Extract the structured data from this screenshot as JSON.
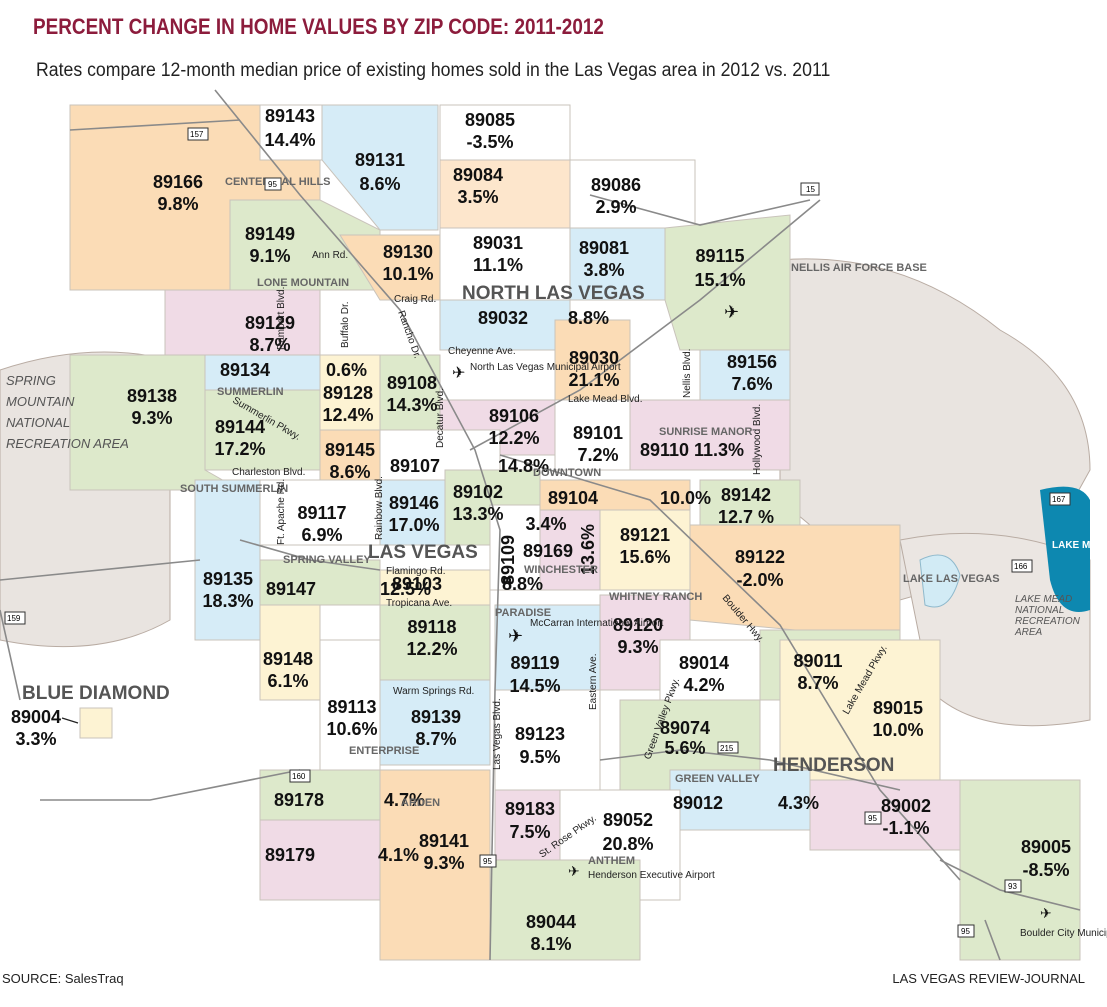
{
  "title": "PERCENT CHANGE IN HOME VALUES BY ZIP CODE: 2011-2012",
  "subtitle": "Rates compare 12-month median price of existing homes sold in the Las Vegas area in 2012 vs. 2011",
  "source": "SOURCE: SalesTraq",
  "credit": "LAS VEGAS REVIEW-JOURNAL",
  "colors": {
    "orange": "#fbdcb6",
    "blue": "#d6ecf7",
    "pink": "#f0dbe6",
    "green": "#dde9cb",
    "cream": "#fdf3d3",
    "white": "#ffffff",
    "land": "#eae5e1",
    "lake": "#0d88b0",
    "title": "#8c1c3c"
  },
  "zips": [
    {
      "zip": "89143",
      "change": "14.4%"
    },
    {
      "zip": "89085",
      "change": "-3.5%"
    },
    {
      "zip": "89131",
      "change": "8.6%"
    },
    {
      "zip": "89166",
      "change": "9.8%"
    },
    {
      "zip": "89084",
      "change": "3.5%"
    },
    {
      "zip": "89086",
      "change": "2.9%"
    },
    {
      "zip": "89149",
      "change": "9.1%"
    },
    {
      "zip": "89130",
      "change": "10.1%"
    },
    {
      "zip": "89031",
      "change": "11.1%"
    },
    {
      "zip": "89081",
      "change": "3.8%"
    },
    {
      "zip": "89115",
      "change": "15.1%"
    },
    {
      "zip": "89129",
      "change": "8.7%"
    },
    {
      "zip": "89032",
      "change": "8.8%"
    },
    {
      "zip": "89134",
      "change": "0.6%"
    },
    {
      "zip": "89138",
      "change": "9.3%"
    },
    {
      "zip": "89128",
      "change": "12.4%"
    },
    {
      "zip": "89108",
      "change": "14.3%"
    },
    {
      "zip": "89030",
      "change": "21.1%"
    },
    {
      "zip": "89156",
      "change": "7.6%"
    },
    {
      "zip": "89144",
      "change": "17.2%"
    },
    {
      "zip": "89106",
      "change": "12.2%"
    },
    {
      "zip": "89101",
      "change": "7.2%"
    },
    {
      "zip": "89110",
      "change": "11.3%"
    },
    {
      "zip": "89145",
      "change": "8.6%"
    },
    {
      "zip": "89107",
      "change": "14.8%"
    },
    {
      "zip": "89117",
      "change": "6.9%"
    },
    {
      "zip": "89146",
      "change": "17.0%"
    },
    {
      "zip": "89102",
      "change": "13.3%"
    },
    {
      "zip": "89104",
      "change": "10.0%"
    },
    {
      "zip": "89142",
      "change": "12.7 %"
    },
    {
      "zip": "89121",
      "change": "15.6%"
    },
    {
      "zip": "89122",
      "change": "-2.0%"
    },
    {
      "zip": "89109",
      "change": "3.4%"
    },
    {
      "zip": "89169",
      "change": "13.6%"
    },
    {
      "zip": "89135",
      "change": "18.3%"
    },
    {
      "zip": "89147",
      "change": "12.5%"
    },
    {
      "zip": "89103",
      "change": "8.8%"
    },
    {
      "zip": "89118",
      "change": "12.2%"
    },
    {
      "zip": "89120",
      "change": "9.3%"
    },
    {
      "zip": "89148",
      "change": "6.1%"
    },
    {
      "zip": "89119",
      "change": "14.5%"
    },
    {
      "zip": "89014",
      "change": "4.2%"
    },
    {
      "zip": "89011",
      "change": "8.7%"
    },
    {
      "zip": "89113",
      "change": "10.6%"
    },
    {
      "zip": "89139",
      "change": "8.7%"
    },
    {
      "zip": "89074",
      "change": "5.6%"
    },
    {
      "zip": "89015",
      "change": "10.0%"
    },
    {
      "zip": "89123",
      "change": "9.5%"
    },
    {
      "zip": "89004",
      "change": "3.3%"
    },
    {
      "zip": "89178",
      "change": "4.7%"
    },
    {
      "zip": "89012",
      "change": "4.3%"
    },
    {
      "zip": "89002",
      "change": "-1.1%"
    },
    {
      "zip": "89183",
      "change": "7.5%"
    },
    {
      "zip": "89052",
      "change": "20.8%"
    },
    {
      "zip": "89179",
      "change": "4.1%"
    },
    {
      "zip": "89141",
      "change": "9.3%"
    },
    {
      "zip": "89005",
      "change": "-8.5%"
    },
    {
      "zip": "89044",
      "change": "8.1%"
    }
  ],
  "streets": [
    "Ann Rd.",
    "Craig Rd.",
    "Cheyenne Ave.",
    "Lake Mead Blvd.",
    "Charleston Blvd.",
    "Flamingo Rd.",
    "Tropicana Ave.",
    "Warm Springs Rd.",
    "Rampart Blvd.",
    "Buffalo Dr.",
    "Rancho Dr.",
    "Summerlin Pkwy.",
    "Decatur Blvd.",
    "Ft. Apache Rd.",
    "Rainbow Blvd.",
    "Las Vegas Blvd.",
    "Nellis Blvd.",
    "Hollywood Blvd.",
    "Boulder Hwy.",
    "Eastern Ave.",
    "Green Valley Pkwy.",
    "Lake Mead Pkwy.",
    "St. Rose Pkwy."
  ],
  "areas": [
    "CENTENNIAL HILLS",
    "LONE MOUNTAIN",
    "SUMMERLIN",
    "SOUTH SUMMERLIN",
    "SPRING VALLEY",
    "DOWNTOWN",
    "WINCHESTER",
    "SUNRISE MANOR",
    "WHITNEY RANCH",
    "PARADISE",
    "ENTERPRISE",
    "ARDEN",
    "GREEN VALLEY",
    "ANTHEM",
    "NELLIS AIR FORCE BASE",
    "LAKE LAS VEGAS"
  ],
  "cities": [
    "NORTH LAS VEGAS",
    "LAS VEGAS",
    "HENDERSON",
    "BLUE DIAMOND"
  ],
  "recreation": [
    "SPRING MOUNTAIN NATIONAL RECREATION AREA",
    "LAKE MEAD NATIONAL RECREATION AREA",
    "LAKE MEAD"
  ],
  "airports": [
    "North Las Vegas Municipal Airport",
    "McCarran International Airport",
    "Henderson Executive Airport",
    "Boulder City Municipal Airport"
  ],
  "highways": [
    "95",
    "15",
    "215",
    "157",
    "159",
    "160",
    "93",
    "167",
    "166"
  ]
}
